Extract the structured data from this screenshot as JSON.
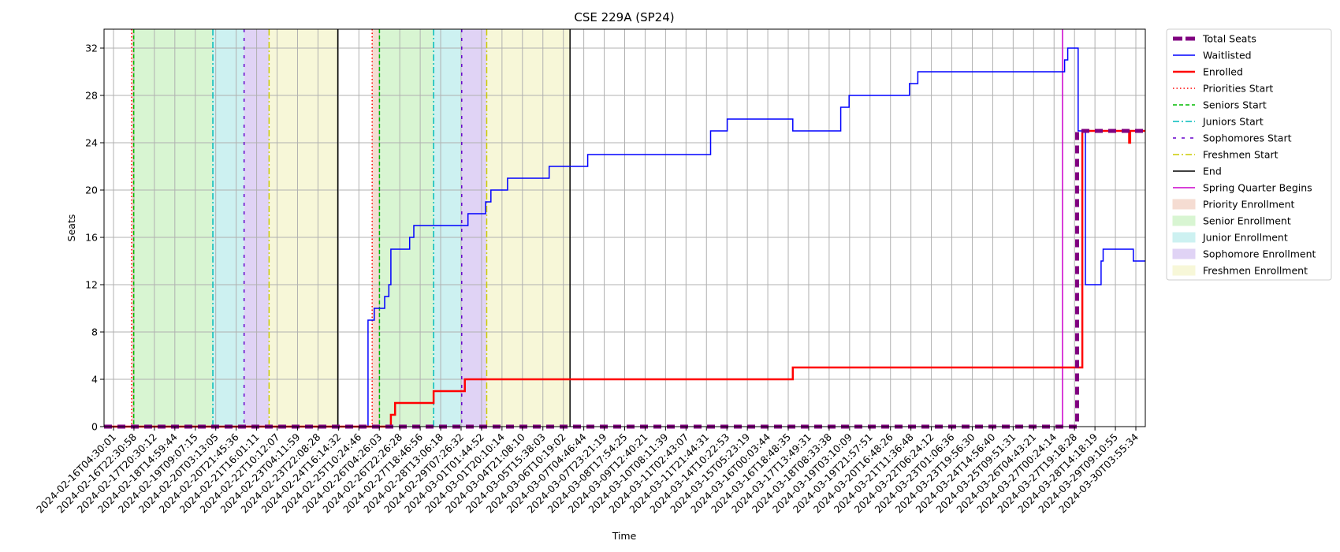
{
  "chart_data": {
    "type": "line",
    "title": "CSE 229A (SP24)",
    "xlabel": "Time",
    "ylabel": "Seats",
    "ylim": [
      0,
      33.6
    ],
    "yticks": [
      0,
      4,
      8,
      12,
      16,
      20,
      24,
      28,
      32
    ],
    "x_tick_labels": [
      "2024-02-16T04:30:01",
      "2024-02-16T22:30:58",
      "2024-02-17T20:30:12",
      "2024-02-18T14:59:44",
      "2024-02-19T09:07:15",
      "2024-02-20T03:13:05",
      "2024-02-20T21:45:36",
      "2024-02-21T16:01:11",
      "2024-02-22T10:12:07",
      "2024-02-23T04:11:59",
      "2024-02-23T22:08:28",
      "2024-02-24T16:14:32",
      "2024-02-25T10:24:46",
      "2024-02-26T04:26:03",
      "2024-02-26T22:26:28",
      "2024-02-27T18:46:56",
      "2024-02-28T13:06:18",
      "2024-02-29T07:26:32",
      "2024-03-01T01:44:52",
      "2024-03-01T20:10:14",
      "2024-03-04T21:08:10",
      "2024-03-05T15:38:03",
      "2024-03-06T10:19:02",
      "2024-03-07T04:46:44",
      "2024-03-07T23:21:19",
      "2024-03-08T17:54:25",
      "2024-03-09T12:40:21",
      "2024-03-10T08:11:39",
      "2024-03-11T02:43:07",
      "2024-03-11T21:44:31",
      "2024-03-14T10:22:53",
      "2024-03-15T05:23:19",
      "2024-03-16T00:03:44",
      "2024-03-16T18:48:35",
      "2024-03-17T13:49:31",
      "2024-03-18T08:33:38",
      "2024-03-19T03:10:09",
      "2024-03-19T21:57:51",
      "2024-03-20T16:48:26",
      "2024-03-21T11:36:48",
      "2024-03-22T06:24:12",
      "2024-03-23T01:06:36",
      "2024-03-23T19:56:30",
      "2024-03-24T14:56:40",
      "2024-03-25T09:51:31",
      "2024-03-26T04:43:21",
      "2024-03-27T00:24:14",
      "2024-03-27T19:18:28",
      "2024-03-28T14:18:19",
      "2024-03-29T09:10:55",
      "2024-03-30T03:55:34"
    ],
    "x_range": [
      0,
      1
    ],
    "series": [
      {
        "name": "Total Seats",
        "color": "#800080",
        "style": "dashed-thick",
        "points": [
          [
            0,
            0
          ],
          [
            0.9345,
            0
          ],
          [
            0.9345,
            25
          ],
          [
            1,
            25
          ]
        ]
      },
      {
        "name": "Waitlisted",
        "color": "#0000ff",
        "style": "solid",
        "points": [
          [
            0,
            0
          ],
          [
            0.2535,
            0
          ],
          [
            0.2535,
            9
          ],
          [
            0.2595,
            9
          ],
          [
            0.2595,
            10
          ],
          [
            0.2695,
            10
          ],
          [
            0.2695,
            11
          ],
          [
            0.2735,
            11
          ],
          [
            0.2735,
            12
          ],
          [
            0.2755,
            12
          ],
          [
            0.2755,
            15
          ],
          [
            0.2935,
            15
          ],
          [
            0.2935,
            16
          ],
          [
            0.2975,
            16
          ],
          [
            0.2975,
            17
          ],
          [
            0.3495,
            17
          ],
          [
            0.3495,
            18
          ],
          [
            0.3665,
            18
          ],
          [
            0.3665,
            19
          ],
          [
            0.3715,
            19
          ],
          [
            0.3715,
            20
          ],
          [
            0.3875,
            20
          ],
          [
            0.3875,
            21
          ],
          [
            0.4275,
            21
          ],
          [
            0.4275,
            22
          ],
          [
            0.4645,
            22
          ],
          [
            0.4645,
            23
          ],
          [
            0.5825,
            23
          ],
          [
            0.5825,
            25
          ],
          [
            0.5985,
            25
          ],
          [
            0.5985,
            26
          ],
          [
            0.6615,
            26
          ],
          [
            0.6615,
            25
          ],
          [
            0.7075,
            25
          ],
          [
            0.7075,
            27
          ],
          [
            0.7155,
            27
          ],
          [
            0.7155,
            28
          ],
          [
            0.7735,
            28
          ],
          [
            0.7735,
            29
          ],
          [
            0.7815,
            29
          ],
          [
            0.7815,
            30
          ],
          [
            0.9225,
            30
          ],
          [
            0.9225,
            31
          ],
          [
            0.9255,
            31
          ],
          [
            0.9255,
            32
          ],
          [
            0.9355,
            32
          ],
          [
            0.9355,
            25
          ],
          [
            0.9425,
            25
          ],
          [
            0.9425,
            12
          ],
          [
            0.9575,
            12
          ],
          [
            0.9575,
            14
          ],
          [
            0.9595,
            14
          ],
          [
            0.9595,
            15
          ],
          [
            0.9885,
            15
          ],
          [
            0.9885,
            14
          ],
          [
            1,
            14
          ]
        ]
      },
      {
        "name": "Enrolled",
        "color": "#ff0000",
        "style": "solid-thick",
        "points": [
          [
            0,
            0
          ],
          [
            0.2755,
            0
          ],
          [
            0.2755,
            1
          ],
          [
            0.2795,
            1
          ],
          [
            0.2795,
            2
          ],
          [
            0.3165,
            2
          ],
          [
            0.3165,
            3
          ],
          [
            0.3465,
            3
          ],
          [
            0.3465,
            4
          ],
          [
            0.6615,
            4
          ],
          [
            0.6615,
            5
          ],
          [
            0.9395,
            5
          ],
          [
            0.9395,
            25
          ],
          [
            0.9845,
            25
          ],
          [
            0.9845,
            24
          ],
          [
            0.9855,
            24
          ],
          [
            0.9855,
            25
          ],
          [
            1,
            25
          ]
        ]
      }
    ],
    "event_lines": [
      {
        "name": "Priorities Start",
        "color": "#ff0000",
        "style": "dotted",
        "x": [
          0.0265,
          0.2575
        ]
      },
      {
        "name": "Seniors Start",
        "color": "#00bb00",
        "style": "dashed",
        "x": [
          0.0285,
          0.2645
        ]
      },
      {
        "name": "Juniors Start",
        "color": "#00bbbb",
        "style": "dashdot",
        "x": [
          0.1045,
          0.3165
        ]
      },
      {
        "name": "Sophomores Start",
        "color": "#6600cc",
        "style": "loose-dash",
        "x": [
          0.1345,
          0.3435
        ]
      },
      {
        "name": "Freshmen Start",
        "color": "#cccc00",
        "style": "dashdot",
        "x": [
          0.1585,
          0.3675
        ]
      },
      {
        "name": "End",
        "color": "#000000",
        "style": "solid",
        "x": [
          0.2245,
          0.4475
        ]
      },
      {
        "name": "Spring Quarter Begins",
        "color": "#cc00cc",
        "style": "solid",
        "x": [
          0.9205
        ]
      }
    ],
    "spans": [
      {
        "name": "Priority Enrollment",
        "color": "#f5dcd2",
        "ranges": [
          [
            0.0265,
            0.0285
          ],
          [
            0.2575,
            0.2645
          ]
        ]
      },
      {
        "name": "Senior Enrollment",
        "color": "#d8f5d2",
        "ranges": [
          [
            0.0285,
            0.1045
          ],
          [
            0.2645,
            0.3165
          ]
        ]
      },
      {
        "name": "Junior Enrollment",
        "color": "#cdf1f1",
        "ranges": [
          [
            0.1045,
            0.1345
          ],
          [
            0.3165,
            0.3435
          ]
        ]
      },
      {
        "name": "Sophomore Enrollment",
        "color": "#e0d3f5",
        "ranges": [
          [
            0.1345,
            0.1585
          ],
          [
            0.3435,
            0.3675
          ]
        ]
      },
      {
        "name": "Freshmen Enrollment",
        "color": "#f7f7d8",
        "ranges": [
          [
            0.1585,
            0.2245
          ],
          [
            0.3675,
            0.4475
          ]
        ]
      }
    ],
    "grid": true,
    "legend_position": "outside-right-top"
  },
  "legend": [
    {
      "label": "Total Seats",
      "kind": "line",
      "color": "#800080",
      "style": "dashed-thick"
    },
    {
      "label": "Waitlisted",
      "kind": "line",
      "color": "#0000ff",
      "style": "solid"
    },
    {
      "label": "Enrolled",
      "kind": "line",
      "color": "#ff0000",
      "style": "solid-thick"
    },
    {
      "label": "Priorities Start",
      "kind": "line",
      "color": "#ff0000",
      "style": "dotted"
    },
    {
      "label": "Seniors Start",
      "kind": "line",
      "color": "#00bb00",
      "style": "dashed"
    },
    {
      "label": "Juniors Start",
      "kind": "line",
      "color": "#00bbbb",
      "style": "dashdot"
    },
    {
      "label": "Sophomores Start",
      "kind": "line",
      "color": "#6600cc",
      "style": "loose-dash"
    },
    {
      "label": "Freshmen Start",
      "kind": "line",
      "color": "#cccc00",
      "style": "dashdot"
    },
    {
      "label": "End",
      "kind": "line",
      "color": "#000000",
      "style": "solid"
    },
    {
      "label": "Spring Quarter Begins",
      "kind": "line",
      "color": "#cc00cc",
      "style": "solid"
    },
    {
      "label": "Priority Enrollment",
      "kind": "patch",
      "color": "#f5dcd2"
    },
    {
      "label": "Senior Enrollment",
      "kind": "patch",
      "color": "#d8f5d2"
    },
    {
      "label": "Junior Enrollment",
      "kind": "patch",
      "color": "#cdf1f1"
    },
    {
      "label": "Sophomore Enrollment",
      "kind": "patch",
      "color": "#e0d3f5"
    },
    {
      "label": "Freshmen Enrollment",
      "kind": "patch",
      "color": "#f7f7d8"
    }
  ]
}
